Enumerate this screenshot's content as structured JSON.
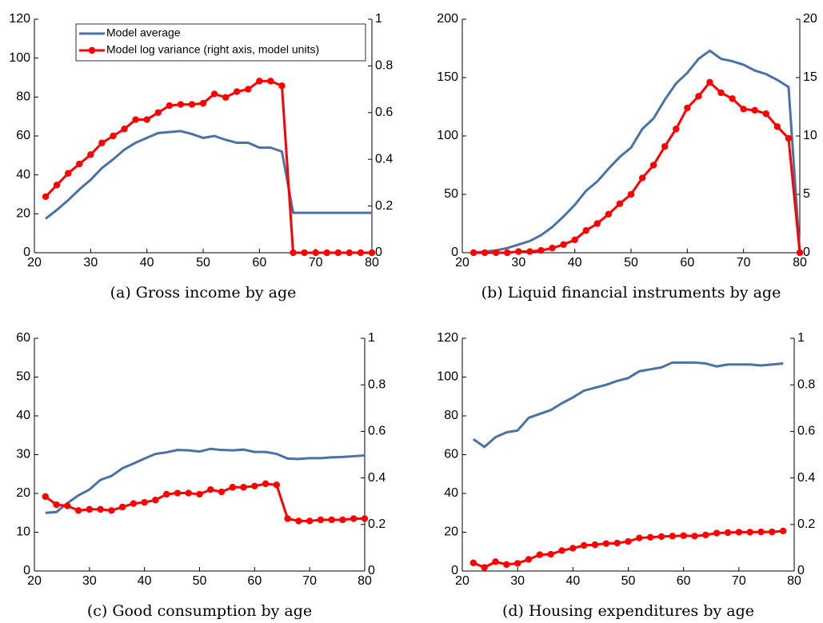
{
  "chart_data": [
    {
      "type": "line",
      "caption": "(a) Gross income by age",
      "legend": "top-center",
      "x": [
        22,
        24,
        26,
        28,
        30,
        32,
        34,
        36,
        38,
        40,
        42,
        44,
        46,
        48,
        50,
        52,
        54,
        56,
        58,
        60,
        62,
        64,
        66,
        68,
        70,
        72,
        74,
        76,
        78,
        80
      ],
      "series": [
        {
          "name": "Model average",
          "color": "#4a72a6",
          "values": [
            17.5,
            22,
            27,
            32.5,
            37.5,
            43.5,
            48,
            53,
            56.5,
            59,
            61.5,
            62,
            62.5,
            61,
            59,
            60,
            58,
            56.5,
            56.5,
            54,
            54,
            52,
            20.5,
            20.5,
            20.5,
            20.5,
            20.5,
            20.5,
            20.5,
            20.5
          ]
        },
        {
          "name": "Model log variance (right axis, model units)",
          "color": "#ff0000",
          "marker": "circle",
          "axis": "y2",
          "values": [
            0.24,
            0.29,
            0.34,
            0.38,
            0.42,
            0.47,
            0.5,
            0.53,
            0.57,
            0.57,
            0.6,
            0.63,
            0.635,
            0.635,
            0.64,
            0.68,
            0.665,
            0.69,
            0.7,
            0.735,
            0.735,
            0.715,
            0,
            0,
            0,
            0,
            0,
            0,
            0,
            0
          ]
        }
      ],
      "xlim": [
        20,
        80
      ],
      "xticks": [
        20,
        30,
        40,
        50,
        60,
        70,
        80
      ],
      "ylim": [
        0,
        120
      ],
      "yticks": [
        0,
        20,
        40,
        60,
        80,
        100,
        120
      ],
      "y2lim": [
        0,
        1
      ],
      "y2ticks": [
        0,
        0.2,
        0.4,
        0.6,
        0.8,
        1
      ]
    },
    {
      "type": "line",
      "caption": "(b) Liquid financial instruments by age",
      "x": [
        22,
        24,
        26,
        28,
        30,
        32,
        34,
        36,
        38,
        40,
        42,
        44,
        46,
        48,
        50,
        52,
        54,
        56,
        58,
        60,
        62,
        64,
        66,
        68,
        70,
        72,
        74,
        76,
        78,
        80
      ],
      "series": [
        {
          "color": "#4a72a6",
          "values": [
            0,
            1,
            2,
            4,
            7,
            10,
            15,
            22,
            31,
            41,
            53,
            61,
            72,
            82,
            90,
            106,
            115,
            131,
            145,
            154,
            166,
            173,
            166,
            164,
            161,
            156,
            153,
            148,
            142,
            0
          ]
        },
        {
          "color": "#ff0000",
          "marker": "circle",
          "axis": "y2",
          "values": [
            0,
            0,
            0,
            0,
            0.1,
            0.1,
            0.2,
            0.4,
            0.7,
            1.1,
            1.9,
            2.5,
            3.3,
            4.2,
            5,
            6.4,
            7.5,
            9.1,
            10.6,
            12.4,
            13.4,
            14.6,
            13.7,
            13.2,
            12.3,
            12.2,
            11.9,
            10.8,
            9.8,
            0
          ]
        }
      ],
      "xlim": [
        20,
        80
      ],
      "xticks": [
        20,
        30,
        40,
        50,
        60,
        70,
        80
      ],
      "ylim": [
        0,
        200
      ],
      "yticks": [
        0,
        50,
        100,
        150,
        200
      ],
      "y2lim": [
        0,
        20
      ],
      "y2ticks": [
        0,
        5,
        10,
        15,
        20
      ]
    },
    {
      "type": "line",
      "caption": "(c) Good consumption by age",
      "x": [
        22,
        24,
        26,
        28,
        30,
        32,
        34,
        36,
        38,
        40,
        42,
        44,
        46,
        48,
        50,
        52,
        54,
        56,
        58,
        60,
        62,
        64,
        66,
        68,
        70,
        72,
        74,
        76,
        78,
        80
      ],
      "series": [
        {
          "color": "#4a72a6",
          "values": [
            15,
            15.2,
            17.5,
            19.5,
            21,
            23.5,
            24.5,
            26.5,
            27.7,
            29,
            30.2,
            30.6,
            31.2,
            31.1,
            30.8,
            31.5,
            31.2,
            31.1,
            31.3,
            30.7,
            30.7,
            30.2,
            29,
            28.9,
            29.1,
            29.1,
            29.3,
            29.4,
            29.6,
            29.8
          ]
        },
        {
          "color": "#ff0000",
          "marker": "circle",
          "axis": "y2",
          "values": [
            0.32,
            0.285,
            0.28,
            0.26,
            0.265,
            0.265,
            0.26,
            0.275,
            0.29,
            0.295,
            0.305,
            0.33,
            0.335,
            0.335,
            0.33,
            0.35,
            0.34,
            0.36,
            0.36,
            0.365,
            0.375,
            0.37,
            0.225,
            0.215,
            0.215,
            0.22,
            0.22,
            0.22,
            0.225,
            0.225
          ]
        }
      ],
      "xlim": [
        20,
        80
      ],
      "xticks": [
        20,
        30,
        40,
        50,
        60,
        70,
        80
      ],
      "ylim": [
        0,
        60
      ],
      "yticks": [
        0,
        10,
        20,
        30,
        40,
        50,
        60
      ],
      "y2lim": [
        0,
        1
      ],
      "y2ticks": [
        0,
        0.2,
        0.4,
        0.6,
        0.8,
        1
      ]
    },
    {
      "type": "line",
      "caption": "(d) Housing expenditures by age",
      "x": [
        22,
        24,
        26,
        28,
        30,
        32,
        34,
        36,
        38,
        40,
        42,
        44,
        46,
        48,
        50,
        52,
        54,
        56,
        58,
        60,
        62,
        64,
        66,
        68,
        70,
        72,
        74,
        76,
        78
      ],
      "series": [
        {
          "color": "#4a72a6",
          "values": [
            68,
            64,
            69,
            71.5,
            72.5,
            79,
            81,
            83,
            86.5,
            89.5,
            93,
            94.5,
            96,
            98,
            99.5,
            103,
            104,
            105,
            107.5,
            107.5,
            107.5,
            107,
            105.5,
            106.5,
            106.5,
            106.5,
            106,
            106.5,
            107
          ]
        },
        {
          "color": "#ff0000",
          "marker": "circle",
          "axis": "y2",
          "values": [
            0.035,
            0.015,
            0.04,
            0.028,
            0.033,
            0.05,
            0.07,
            0.072,
            0.088,
            0.098,
            0.11,
            0.113,
            0.118,
            0.12,
            0.127,
            0.142,
            0.145,
            0.148,
            0.15,
            0.152,
            0.15,
            0.155,
            0.163,
            0.165,
            0.167,
            0.167,
            0.168,
            0.168,
            0.172
          ]
        }
      ],
      "xlim": [
        20,
        80
      ],
      "xticks": [
        20,
        30,
        40,
        50,
        60,
        70,
        80
      ],
      "ylim": [
        0,
        120
      ],
      "yticks": [
        0,
        20,
        40,
        60,
        80,
        100,
        120
      ],
      "y2lim": [
        0,
        1
      ],
      "y2ticks": [
        0,
        0.2,
        0.4,
        0.6,
        0.8,
        1
      ]
    }
  ]
}
